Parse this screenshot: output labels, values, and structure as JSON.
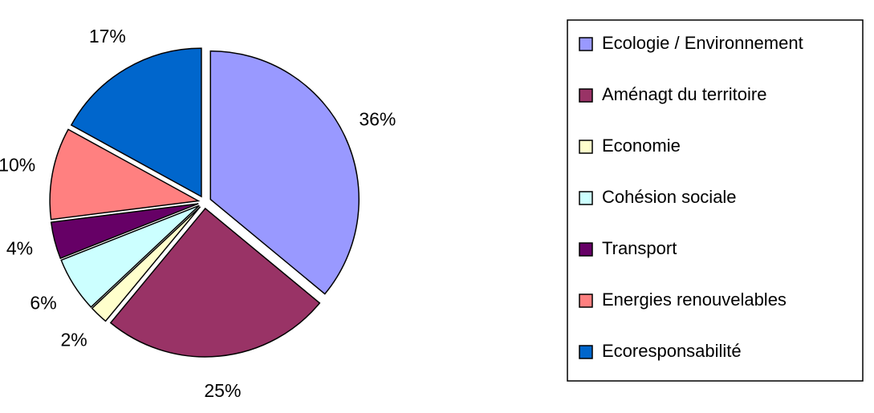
{
  "chart_data": {
    "type": "pie",
    "categories": [
      "Ecologie / Environnement",
      "Aménagt du territoire",
      "Economie",
      "Cohésion sociale",
      "Transport",
      "Energies renouvelables",
      "Ecoresponsabilité"
    ],
    "values": [
      36,
      25,
      2,
      6,
      4,
      10,
      17
    ],
    "value_labels": [
      "36%",
      "25%",
      "2%",
      "6%",
      "4%",
      "10%",
      "17%"
    ],
    "colors": [
      "#9999ff",
      "#993366",
      "#ffffcc",
      "#ccffff",
      "#660066",
      "#ff8080",
      "#0066cc"
    ],
    "legend": "right"
  }
}
